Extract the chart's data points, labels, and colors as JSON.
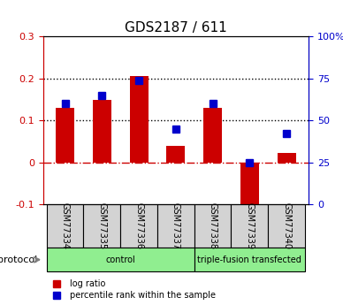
{
  "title": "GDS2187 / 611",
  "samples": [
    "GSM77334",
    "GSM77335",
    "GSM77336",
    "GSM77337",
    "GSM77338",
    "GSM77339",
    "GSM77340"
  ],
  "log_ratio": [
    0.13,
    0.15,
    0.205,
    0.04,
    0.13,
    -0.105,
    0.022
  ],
  "percentile_rank": [
    60,
    65,
    74,
    45,
    60,
    25,
    42
  ],
  "bar_color": "#cc0000",
  "dot_color": "#0000cc",
  "ylim_left": [
    -0.1,
    0.3
  ],
  "ylim_right": [
    0,
    100
  ],
  "yticks_left": [
    -0.1,
    0.0,
    0.1,
    0.2,
    0.3
  ],
  "ytick_labels_left": [
    "-0.1",
    "0",
    "0.1",
    "0.2",
    "0.3"
  ],
  "yticks_right": [
    0,
    25,
    50,
    75,
    100
  ],
  "ytick_labels_right": [
    "0",
    "25",
    "50",
    "75",
    "100%"
  ],
  "hlines_dotted": [
    0.1,
    0.2
  ],
  "hline_dashed": 0.0,
  "groups": [
    {
      "label": "control",
      "indices": [
        0,
        1,
        2,
        3
      ],
      "color": "#90ee90"
    },
    {
      "label": "triple-fusion transfected",
      "indices": [
        4,
        5,
        6
      ],
      "color": "#90ee90"
    }
  ],
  "protocol_label": "protocol",
  "legend_items": [
    {
      "label": "log ratio",
      "color": "#cc0000"
    },
    {
      "label": "percentile rank within the sample",
      "color": "#0000cc"
    }
  ],
  "axis_left_color": "#cc0000",
  "axis_right_color": "#0000cc",
  "bar_width": 0.5
}
